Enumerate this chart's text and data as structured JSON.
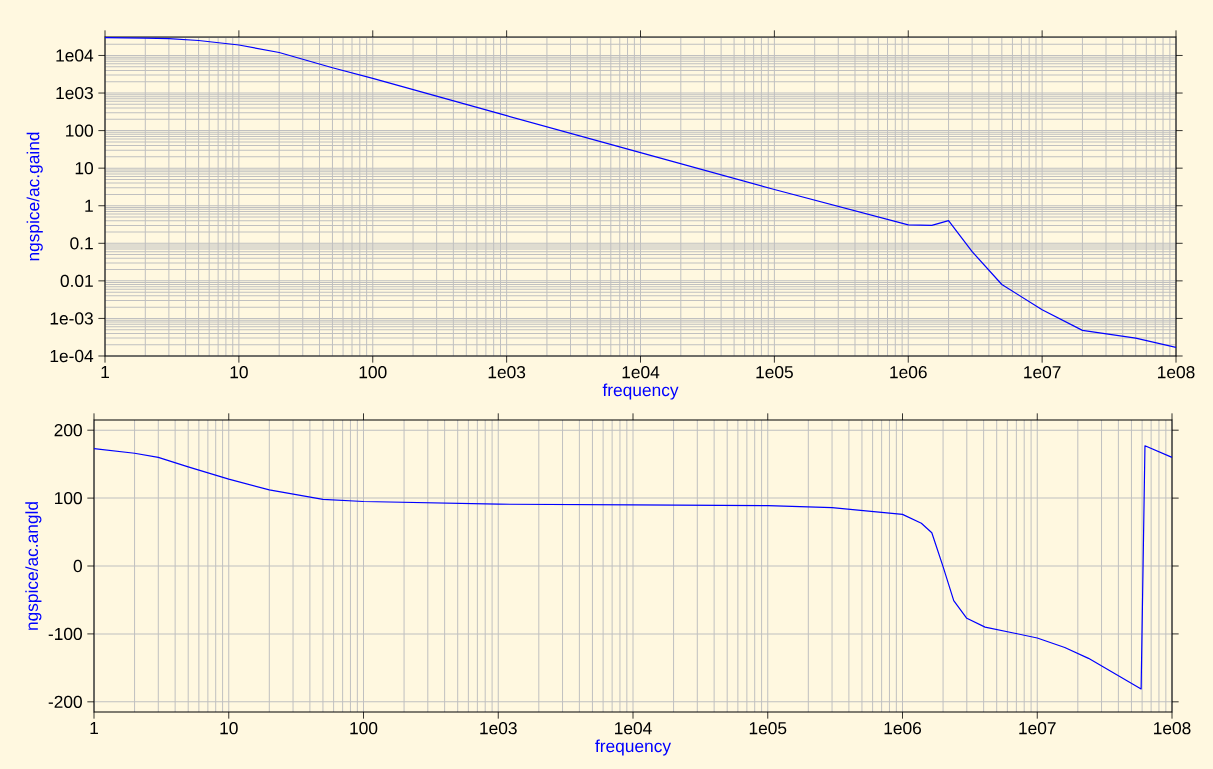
{
  "chart_data": [
    {
      "type": "line",
      "xlabel": "frequency",
      "ylabel": "ngspice/ac.gaind",
      "log": "xy",
      "grid": true,
      "xlim": [
        1,
        100000000
      ],
      "ylim": [
        0.0001,
        31000
      ],
      "xticks": [
        1,
        10,
        100,
        {
          "value": 1000,
          "label": "1e03"
        },
        {
          "value": 10000,
          "label": "1e04"
        },
        {
          "value": 100000,
          "label": "1e05"
        },
        {
          "value": 1000000,
          "label": "1e06"
        },
        {
          "value": 10000000,
          "label": "1e07"
        },
        {
          "value": 100000000,
          "label": "1e08"
        }
      ],
      "yticks": [
        {
          "value": 0.0001,
          "label": "1e-04"
        },
        {
          "value": 0.001,
          "label": "1e-03"
        },
        0.01,
        0.1,
        1,
        10,
        100,
        {
          "value": 1000,
          "label": "1e03"
        },
        {
          "value": 10000,
          "label": "1e04"
        }
      ],
      "x": [
        1,
        2,
        3,
        5,
        10,
        20,
        50,
        100,
        1000,
        10000,
        100000,
        1000000,
        1500000,
        2000000,
        3000000,
        5000000,
        10000000,
        20000000,
        50000000,
        100000000
      ],
      "series": [
        {
          "color": "#0000ff",
          "values": [
            30000,
            29000,
            28000,
            25000,
            19000,
            12000,
            4700,
            2450,
            250,
            26,
            2.7,
            0.31,
            0.3,
            0.4,
            0.06,
            0.008,
            0.0017,
            0.00048,
            0.0003,
            0.00017
          ]
        }
      ]
    },
    {
      "type": "line",
      "xlabel": "frequency",
      "ylabel": "ngspice/ac.angld",
      "log": "x",
      "grid": true,
      "xlim": [
        1,
        100000000
      ],
      "ylim": [
        -215,
        215
      ],
      "xticks": [
        1,
        10,
        100,
        {
          "value": 1000,
          "label": "1e03"
        },
        {
          "value": 10000,
          "label": "1e04"
        },
        {
          "value": 100000,
          "label": "1e05"
        },
        {
          "value": 1000000,
          "label": "1e06"
        },
        {
          "value": 10000000,
          "label": "1e07"
        },
        {
          "value": 100000000,
          "label": "1e08"
        }
      ],
      "yticks": [
        -200,
        -100,
        0,
        100,
        200
      ],
      "x": [
        1,
        2,
        3,
        5,
        10,
        20,
        50,
        100,
        1000,
        10000,
        100000,
        300000,
        1000000,
        1380000,
        1650000,
        2000000,
        2400000,
        3000000,
        4100000,
        6800000,
        10000000,
        16000000,
        24000000,
        59000000,
        63000000,
        100000000
      ],
      "series": [
        {
          "color": "#0000ff",
          "values": [
            173,
            166,
            160,
            146,
            128,
            112,
            98,
            95,
            91,
            90,
            89,
            86,
            76,
            63,
            49,
            -1,
            -51,
            -77,
            -90,
            -99,
            -106,
            -120,
            -136,
            -181,
            177,
            160
          ]
        }
      ]
    }
  ]
}
